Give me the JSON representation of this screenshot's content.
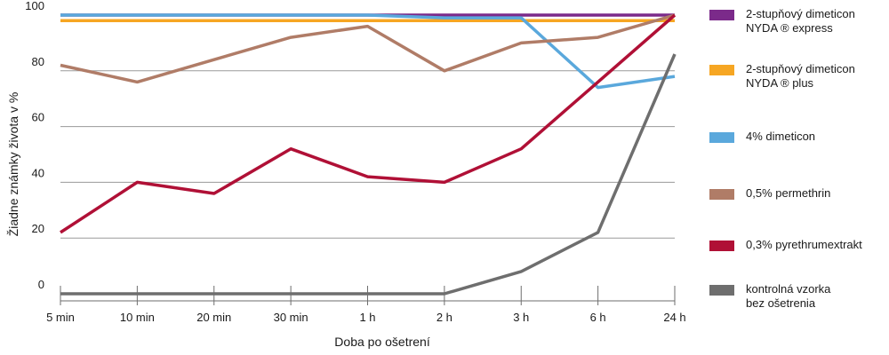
{
  "chart_data": {
    "type": "line",
    "title": "",
    "xlabel": "Doba  po  ošetrení",
    "ylabel": "Žiadne  známky  života  v %",
    "categories": [
      "5 min",
      "10 min",
      "20 min",
      "30 min",
      "1 h",
      "2 h",
      "3 h",
      "6 h",
      "24 h"
    ],
    "ylim": [
      0,
      100
    ],
    "yticks": [
      0,
      20,
      40,
      60,
      80,
      100
    ],
    "grid": true,
    "legend_position": "right",
    "series": [
      {
        "name": "2-stupňový  dimeticon\nNYDA ® express",
        "color": "#7b2a8a",
        "values": [
          100,
          100,
          100,
          100,
          100,
          100,
          100,
          100,
          100
        ]
      },
      {
        "name": "2-stupňový  dimeticon\nNYDA ® plus",
        "color": "#f6a623",
        "values": [
          98,
          98,
          98,
          98,
          98,
          98,
          98,
          98,
          98
        ]
      },
      {
        "name": "4%  dimeticon",
        "color": "#5aa8dc",
        "values": [
          100,
          100,
          100,
          100,
          100,
          99,
          99,
          74,
          78
        ]
      },
      {
        "name": "0,5%  permethrin",
        "color": "#b07c67",
        "values": [
          82,
          76,
          84,
          92,
          96,
          80,
          90,
          92,
          100
        ]
      },
      {
        "name": "0,3%  pyrethrumextrakt",
        "color": "#b01036",
        "values": [
          22,
          40,
          36,
          52,
          42,
          40,
          52,
          76,
          100
        ]
      },
      {
        "name": "kontrolná   vzorka\nbez  ošetrenia",
        "color": "#6e6e6e",
        "values": [
          0,
          0,
          0,
          0,
          0,
          0,
          8,
          22,
          86
        ]
      }
    ]
  }
}
